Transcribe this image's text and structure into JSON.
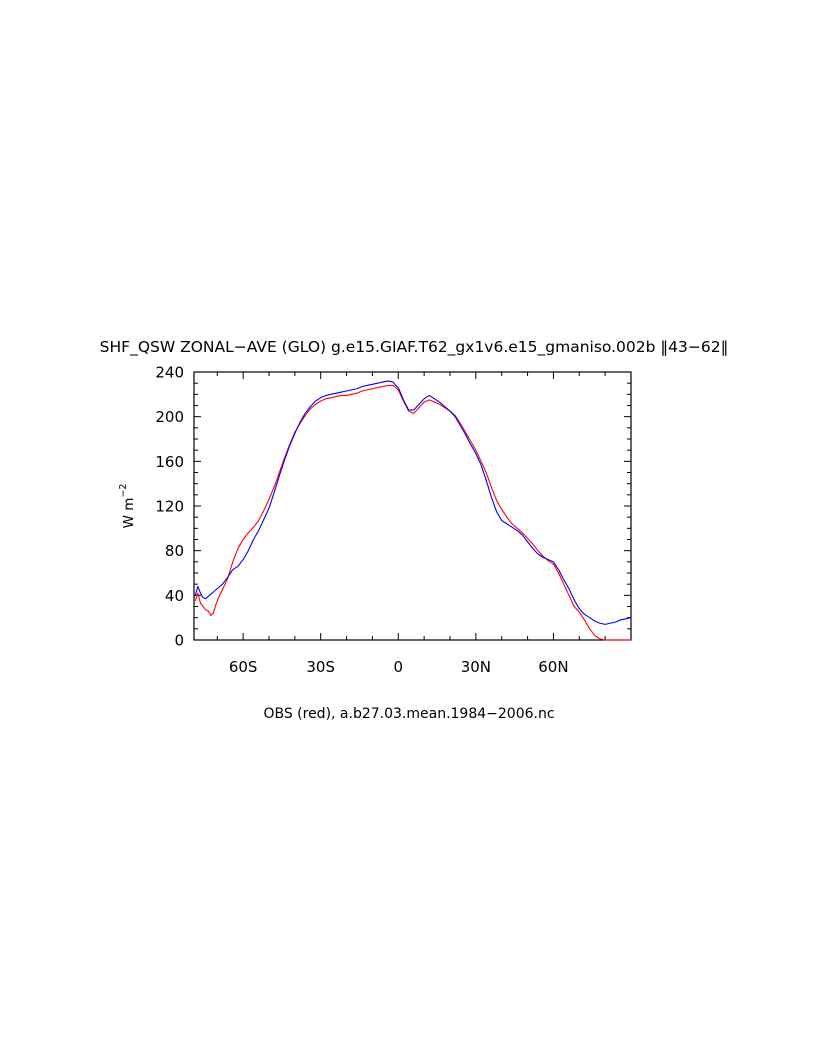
{
  "chart_data": {
    "type": "line",
    "title": "SHF_QSW ZONAL−AVE (GLO) g.e15.GIAF.T62_gx1v6.e15_gmaniso.002b ‖43−62‖",
    "xlabel": "",
    "ylabel": "W m",
    "ylabel_exponent": "−2",
    "caption": "OBS (red), a.b27.03.mean.1984−2006.nc",
    "xlim": [
      -79,
      90
    ],
    "ylim": [
      0,
      240
    ],
    "x_ticks": [
      {
        "value": -60,
        "label": "60S"
      },
      {
        "value": -30,
        "label": "30S"
      },
      {
        "value": 0,
        "label": "0"
      },
      {
        "value": 30,
        "label": "30N"
      },
      {
        "value": 60,
        "label": "60N"
      }
    ],
    "y_ticks": [
      {
        "value": 0,
        "label": "0"
      },
      {
        "value": 40,
        "label": "40"
      },
      {
        "value": 80,
        "label": "80"
      },
      {
        "value": 120,
        "label": "120"
      },
      {
        "value": 160,
        "label": "160"
      },
      {
        "value": 200,
        "label": "200"
      },
      {
        "value": 240,
        "label": "240"
      }
    ],
    "grid": false,
    "series": [
      {
        "color": "#ff0000",
        "x": [
          -78.5,
          -77.5,
          -76.5,
          -75.5,
          -74.5,
          -73.5,
          -72.5,
          -71.5,
          -70.5,
          -69.5,
          -68,
          -66,
          -64,
          -62,
          -60,
          -58,
          -56,
          -54,
          -52,
          -50,
          -48,
          -46,
          -44,
          -42,
          -40,
          -38,
          -36,
          -34,
          -32,
          -30,
          -28,
          -26,
          -24,
          -22,
          -20,
          -18,
          -16,
          -14,
          -12,
          -10,
          -8,
          -6,
          -4,
          -2,
          -1,
          0,
          2,
          4,
          6,
          8,
          10,
          12,
          14,
          16,
          18,
          20,
          22,
          24,
          26,
          28,
          30,
          32,
          34,
          36,
          38,
          40,
          42,
          44,
          46,
          48,
          50,
          52,
          54,
          56,
          58,
          60,
          62,
          64,
          66,
          68,
          70,
          72,
          74,
          76,
          78,
          80,
          82,
          84,
          86,
          88,
          90
        ],
        "values": [
          35,
          42,
          33,
          30,
          27,
          26,
          22,
          24,
          32,
          38,
          45,
          55,
          70,
          82,
          90,
          96,
          101,
          107,
          116,
          126,
          137,
          150,
          163,
          175,
          186,
          194,
          201,
          207,
          211,
          214,
          216,
          217,
          218,
          219,
          219,
          220,
          221,
          223,
          224,
          225,
          226,
          227,
          228,
          228,
          226,
          224,
          214,
          205,
          203,
          208,
          213,
          215,
          213,
          211,
          208,
          205,
          201,
          194,
          186,
          178,
          170,
          160,
          150,
          137,
          125,
          117,
          110,
          104,
          100,
          96,
          91,
          86,
          80,
          75,
          71,
          68,
          60,
          50,
          40,
          30,
          25,
          18,
          10,
          4,
          1,
          0,
          0,
          0,
          0,
          0,
          0
        ],
        "y_ticks_note": ""
      },
      {
        "color": "#0000ff",
        "x": [
          -78.5,
          -77.5,
          -76.5,
          -75.5,
          -74.5,
          -73.5,
          -72.5,
          -71.5,
          -70.5,
          -69.5,
          -68,
          -66,
          -64,
          -62,
          -60,
          -58,
          -56,
          -54,
          -52,
          -50,
          -48,
          -46,
          -44,
          -42,
          -40,
          -38,
          -36,
          -34,
          -32,
          -30,
          -28,
          -26,
          -24,
          -22,
          -20,
          -18,
          -16,
          -14,
          -12,
          -10,
          -8,
          -6,
          -4,
          -2,
          -1,
          0,
          2,
          4,
          6,
          8,
          10,
          12,
          14,
          16,
          18,
          20,
          22,
          24,
          26,
          28,
          30,
          32,
          34,
          36,
          38,
          40,
          42,
          44,
          46,
          48,
          50,
          52,
          54,
          56,
          58,
          60,
          62,
          64,
          66,
          68,
          70,
          72,
          74,
          76,
          78,
          80,
          82,
          84,
          86,
          88,
          90
        ],
        "values": [
          40,
          48,
          42,
          38,
          37,
          39,
          41,
          43,
          45,
          47,
          50,
          56,
          63,
          66,
          72,
          80,
          90,
          98,
          108,
          118,
          132,
          147,
          161,
          174,
          185,
          195,
          203,
          209,
          214,
          217,
          219,
          220,
          221,
          222,
          223,
          224,
          225,
          227,
          228,
          229,
          230,
          231,
          232,
          231,
          228,
          226,
          215,
          206,
          206,
          211,
          216,
          219,
          216,
          213,
          209,
          205,
          200,
          192,
          184,
          175,
          167,
          157,
          143,
          128,
          115,
          107,
          104,
          101,
          98,
          94,
          88,
          82,
          77,
          74,
          72,
          70,
          63,
          54,
          46,
          36,
          28,
          23,
          20,
          17,
          15,
          14,
          15,
          16,
          18,
          19,
          20
        ]
      }
    ]
  }
}
